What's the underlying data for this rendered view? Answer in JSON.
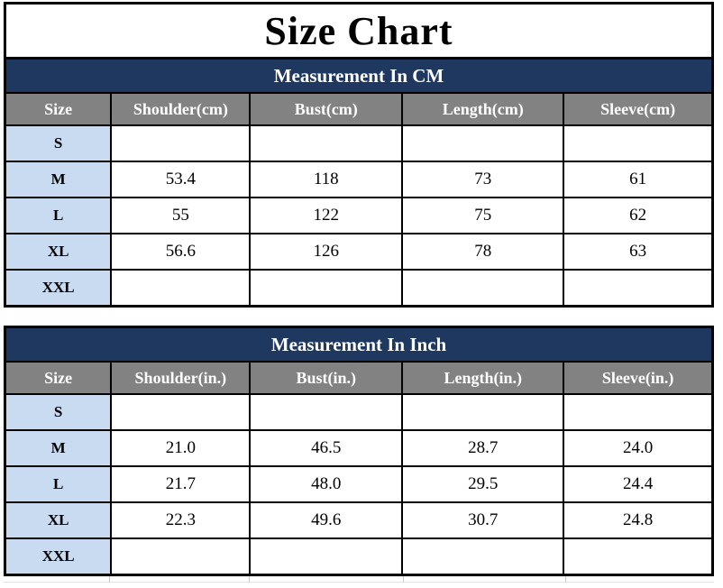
{
  "page_title": "Size Chart",
  "colors": {
    "banner_navy": "#1F3860",
    "header_gray": "#828282",
    "size_column_blue": "#C9DBF0",
    "border_black": "#000000",
    "header_text": "#ffffff",
    "body_text": "#000000"
  },
  "chart_data": [
    {
      "type": "table",
      "banner": "Measurement In CM",
      "columns": [
        "Size",
        "Shoulder(cm)",
        "Bust(cm)",
        "Length(cm)",
        "Sleeve(cm)"
      ],
      "rows": [
        [
          "S",
          "",
          "",
          "",
          ""
        ],
        [
          "M",
          "53.4",
          "118",
          "73",
          "61"
        ],
        [
          "L",
          "55",
          "122",
          "75",
          "62"
        ],
        [
          "XL",
          "56.6",
          "126",
          "78",
          "63"
        ],
        [
          "XXL",
          "",
          "",
          "",
          ""
        ]
      ]
    },
    {
      "type": "table",
      "banner": "Measurement In Inch",
      "columns": [
        "Size",
        "Shoulder(in.)",
        "Bust(in.)",
        "Length(in.)",
        "Sleeve(in.)"
      ],
      "rows": [
        [
          "S",
          "",
          "",
          "",
          ""
        ],
        [
          "M",
          "21.0",
          "46.5",
          "28.7",
          "24.0"
        ],
        [
          "L",
          "21.7",
          "48.0",
          "29.5",
          "24.4"
        ],
        [
          "XL",
          "22.3",
          "49.6",
          "30.7",
          "24.8"
        ],
        [
          "XXL",
          "",
          "",
          "",
          ""
        ]
      ]
    }
  ]
}
